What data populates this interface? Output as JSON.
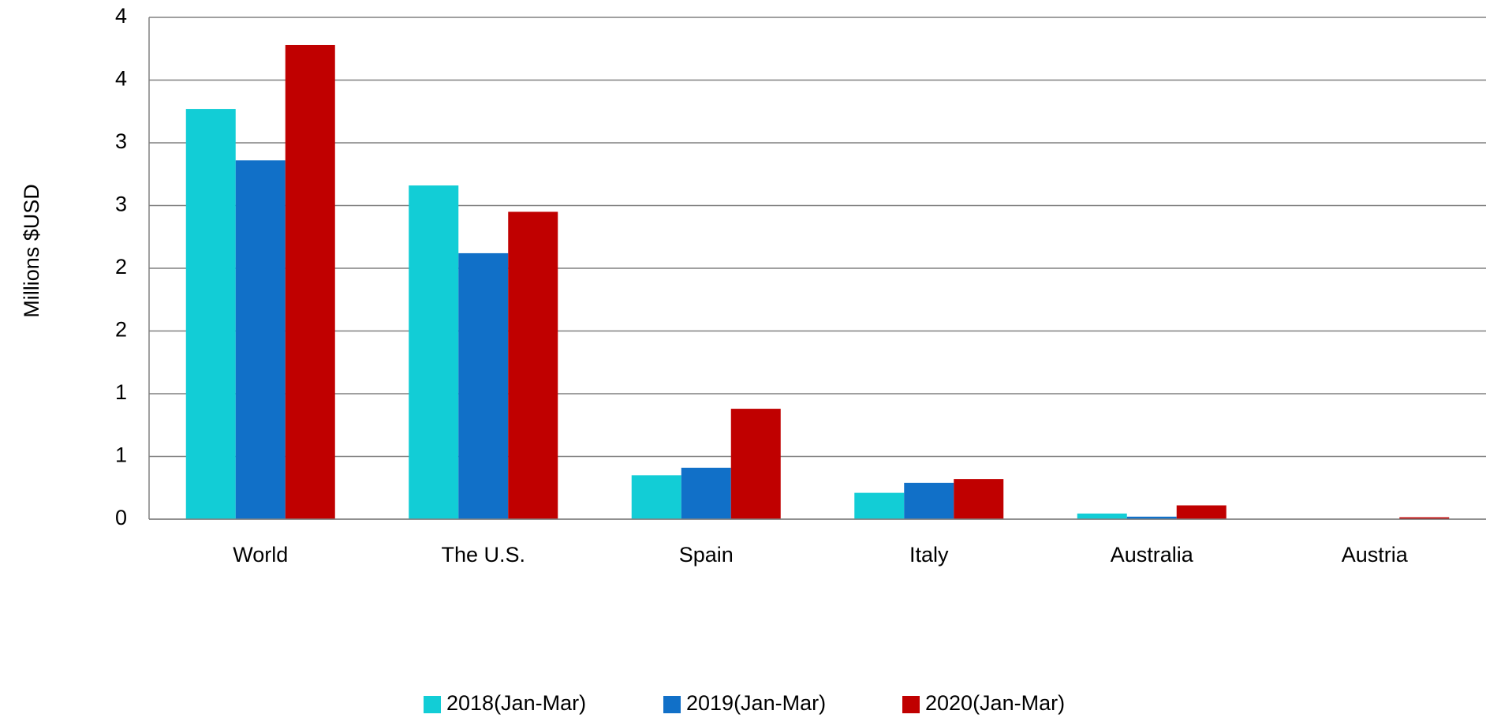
{
  "chart_data": {
    "type": "bar",
    "y_label": "Millions $USD",
    "categories": [
      "World",
      "The U.S.",
      "Spain",
      "Italy",
      "Australia",
      "Austria"
    ],
    "series": [
      {
        "name": "2018(Jan-Mar)",
        "color": "#12cdd6",
        "values": [
          3.27,
          2.66,
          0.35,
          0.21,
          0.045,
          0
        ]
      },
      {
        "name": "2019(Jan-Mar)",
        "color": "#1170c8",
        "values": [
          2.86,
          2.12,
          0.41,
          0.29,
          0.02,
          0
        ]
      },
      {
        "name": "2020(Jan-Mar)",
        "color": "#c00000",
        "values": [
          3.78,
          2.45,
          0.88,
          0.32,
          0.11,
          0.015
        ]
      }
    ],
    "ylim": [
      0,
      4
    ],
    "yticks": [
      0,
      {
        "value": 0.5,
        "label": "1"
      },
      1,
      {
        "value": 1.5,
        "label": "2"
      },
      2,
      {
        "value": 2.5,
        "label": "3"
      },
      3,
      {
        "value": 3.5,
        "label": "4"
      },
      4
    ],
    "grid": true,
    "legend": "bottom"
  }
}
